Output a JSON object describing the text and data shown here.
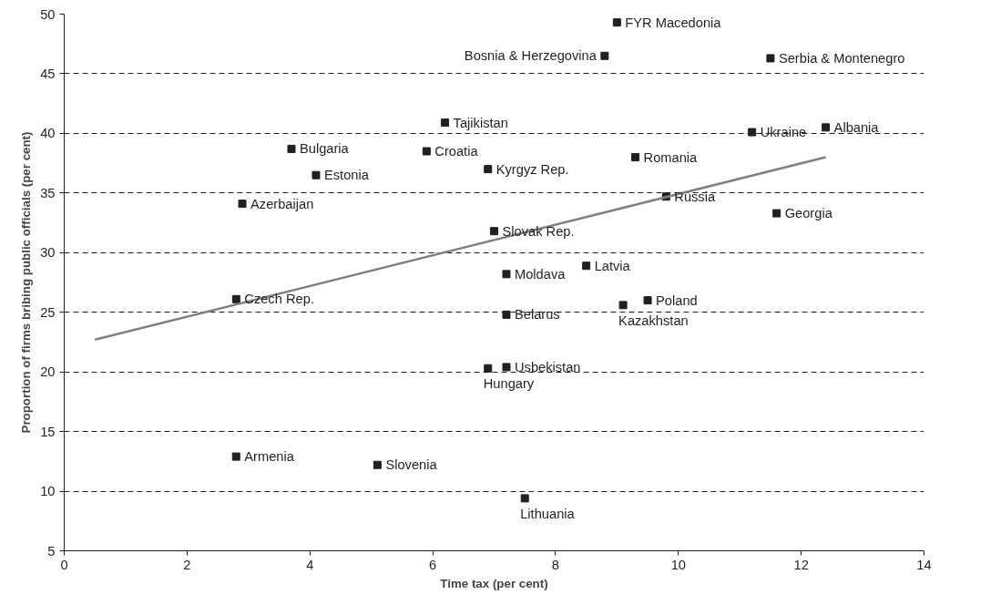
{
  "chart_data": {
    "type": "scatter",
    "xlabel": "Time tax (per cent)",
    "ylabel": "Proportion of firms bribing public officials (per cent)",
    "xlim": [
      0,
      14
    ],
    "xticks": [
      0,
      2,
      4,
      6,
      8,
      10,
      12,
      14
    ],
    "ylim": [
      5,
      50
    ],
    "yticks": [
      5,
      10,
      15,
      20,
      25,
      30,
      35,
      40,
      45,
      50
    ],
    "grid": "y",
    "series": [
      {
        "marker": "square",
        "color": "#231f20",
        "x": [
          2.8,
          2.9,
          3.7,
          4.1,
          2.8,
          5.1,
          5.9,
          6.2,
          6.9,
          7.0,
          7.2,
          7.2,
          6.9,
          7.2,
          7.5,
          8.5,
          8.8,
          9.0,
          9.1,
          9.5,
          9.3,
          9.8,
          11.2,
          11.5,
          12.4,
          11.6
        ],
        "values": [
          26.1,
          34.1,
          38.7,
          36.5,
          12.9,
          12.2,
          38.5,
          40.9,
          37.0,
          31.8,
          28.2,
          24.8,
          20.3,
          20.4,
          9.4,
          28.9,
          46.5,
          49.3,
          25.6,
          26.0,
          38.0,
          34.7,
          40.1,
          46.3,
          40.5,
          33.3
        ]
      },
      {
        "type": "line",
        "marker": "none",
        "color": "#808080",
        "x": [
          0.5,
          12.4
        ],
        "values": [
          22.7,
          38.0
        ]
      }
    ],
    "annotations": [
      {
        "text": "Czech Rep.",
        "x": 2.8,
        "y": 26.1
      },
      {
        "text": "Azerbaijan",
        "x": 2.9,
        "y": 34.1
      },
      {
        "text": "Bulgaria",
        "x": 3.7,
        "y": 38.7
      },
      {
        "text": "Estonia",
        "x": 4.1,
        "y": 36.5
      },
      {
        "text": "Armenia",
        "x": 2.8,
        "y": 12.9
      },
      {
        "text": "Slovenia",
        "x": 5.1,
        "y": 12.2
      },
      {
        "text": "Croatia",
        "x": 5.9,
        "y": 38.5
      },
      {
        "text": "Tajikistan",
        "x": 6.2,
        "y": 40.9
      },
      {
        "text": "Kyrgyz Rep.",
        "x": 6.9,
        "y": 37.0
      },
      {
        "text": "Slovak Rep.",
        "x": 7.0,
        "y": 31.8
      },
      {
        "text": "Moldava",
        "x": 7.2,
        "y": 28.2
      },
      {
        "text": "Belarus",
        "x": 7.2,
        "y": 24.8
      },
      {
        "text": "Hungary",
        "x": 6.9,
        "y": 20.3
      },
      {
        "text": "Usbekistan",
        "x": 7.2,
        "y": 20.4
      },
      {
        "text": "Lithuania",
        "x": 7.5,
        "y": 9.4
      },
      {
        "text": "Latvia",
        "x": 8.5,
        "y": 28.9
      },
      {
        "text": "Bosnia & Herzegovina",
        "x": 8.8,
        "y": 46.5
      },
      {
        "text": "FYR Macedonia",
        "x": 9.0,
        "y": 49.3
      },
      {
        "text": "Kazakhstan",
        "x": 9.1,
        "y": 25.6
      },
      {
        "text": "Poland",
        "x": 9.5,
        "y": 26.0
      },
      {
        "text": "Romania",
        "x": 9.3,
        "y": 38.0
      },
      {
        "text": "Russia",
        "x": 9.8,
        "y": 34.7
      },
      {
        "text": "Ukraine",
        "x": 11.2,
        "y": 40.1
      },
      {
        "text": "Serbia & Montenegro",
        "x": 11.5,
        "y": 46.3
      },
      {
        "text": "Albania",
        "x": 12.4,
        "y": 40.5
      },
      {
        "text": "Georgia",
        "x": 11.6,
        "y": 33.3
      }
    ]
  }
}
